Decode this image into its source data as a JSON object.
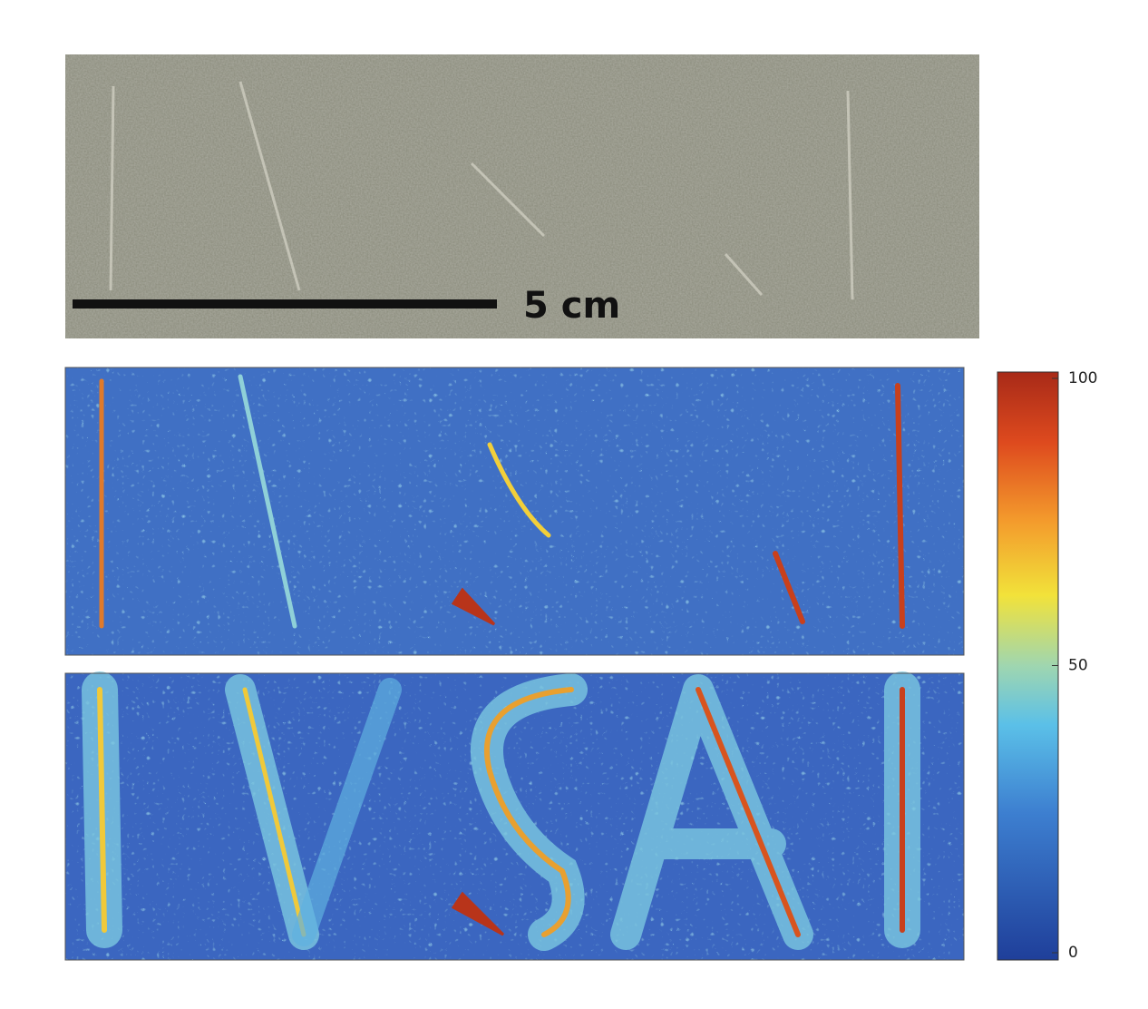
{
  "figure": {
    "scale_bar_label": "5 cm",
    "colorbar": {
      "lim": [
        0,
        100
      ],
      "ticks": [
        0,
        50,
        100
      ]
    }
  }
}
